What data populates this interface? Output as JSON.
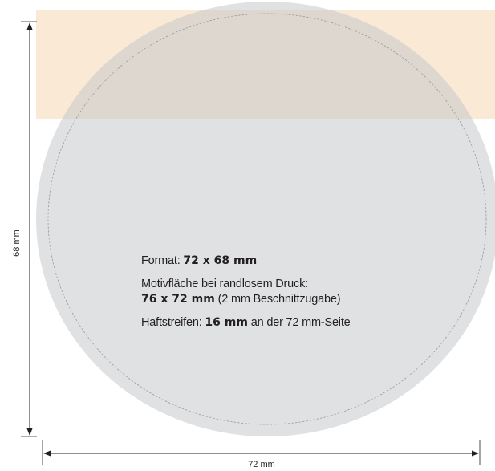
{
  "dimensions": {
    "height_label": "68 mm",
    "width_label": "72 mm"
  },
  "specs": {
    "format_label": "Format: ",
    "format_value": "72 x 68 mm",
    "motif_label": "Motivfläche bei randlosem Druck:",
    "motif_value": "76 x 72 mm",
    "motif_note": " (2 mm Beschnittzugabe)",
    "strip_label": "Haftstreifen: ",
    "strip_value": "16 mm",
    "strip_note": " an der 72 mm-Seite"
  },
  "colors": {
    "adhesive_strip": "#f5d7b0",
    "coaster_fill": "#d8d9da",
    "cut_line": "#9a9b9d",
    "dimension_line": "#231f20"
  }
}
